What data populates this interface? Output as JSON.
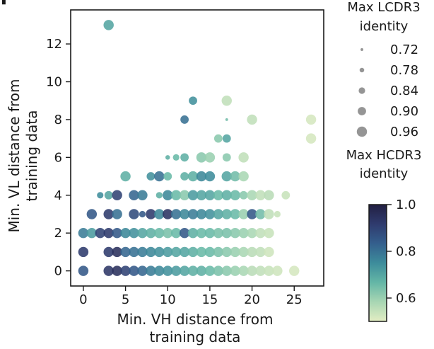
{
  "chart_data": {
    "type": "scatter",
    "panel_letter": "f",
    "xlabel": [
      "Min. VH distance from",
      "training data"
    ],
    "ylabel": [
      "Min. VL distance from",
      "training data"
    ],
    "xlim": [
      -1.5,
      28.5
    ],
    "ylim": [
      -0.8,
      13.8
    ],
    "xticks": [
      0,
      5,
      10,
      15,
      20,
      25
    ],
    "yticks": [
      0,
      2,
      4,
      6,
      8,
      10,
      12
    ],
    "grid": false,
    "size_legend": {
      "title": [
        "Max LCDR3",
        "identity"
      ],
      "entries": [
        "0.72",
        "0.78",
        "0.84",
        "0.90",
        "0.96"
      ],
      "values": [
        0.72,
        0.78,
        0.84,
        0.9,
        0.96
      ]
    },
    "color_legend": {
      "title": [
        "Max HCDR3",
        "identity"
      ],
      "ticks": [
        "0.6",
        "0.8",
        "1.0"
      ],
      "tick_values": [
        0.6,
        0.8,
        1.0
      ],
      "range": [
        0.5,
        1.0
      ],
      "colormap": [
        "#e3edc3",
        "#a8d6b3",
        "#64b6a6",
        "#3d8c9b",
        "#345f8d",
        "#2f3b6e",
        "#221f42"
      ]
    },
    "points": [
      {
        "x": 3,
        "y": 13,
        "s": 0.96,
        "c": 0.7
      },
      {
        "x": 13,
        "y": 9,
        "s": 0.9,
        "c": 0.74
      },
      {
        "x": 17,
        "y": 9,
        "s": 0.96,
        "c": 0.55
      },
      {
        "x": 12,
        "y": 8,
        "s": 0.9,
        "c": 0.8
      },
      {
        "x": 17,
        "y": 8,
        "s": 0.72,
        "c": 0.65
      },
      {
        "x": 20,
        "y": 8,
        "s": 0.96,
        "c": 0.55
      },
      {
        "x": 27,
        "y": 8,
        "s": 0.96,
        "c": 0.52
      },
      {
        "x": 16,
        "y": 7,
        "s": 0.9,
        "c": 0.62
      },
      {
        "x": 17,
        "y": 7,
        "s": 0.9,
        "c": 0.7
      },
      {
        "x": 27,
        "y": 7,
        "s": 0.96,
        "c": 0.52
      },
      {
        "x": 10,
        "y": 6,
        "s": 0.78,
        "c": 0.68
      },
      {
        "x": 11,
        "y": 6,
        "s": 0.84,
        "c": 0.66
      },
      {
        "x": 12,
        "y": 6,
        "s": 0.9,
        "c": 0.68
      },
      {
        "x": 14,
        "y": 6,
        "s": 0.96,
        "c": 0.62
      },
      {
        "x": 15,
        "y": 6,
        "s": 0.96,
        "c": 0.6
      },
      {
        "x": 17,
        "y": 6,
        "s": 0.9,
        "c": 0.62
      },
      {
        "x": 19,
        "y": 6,
        "s": 0.96,
        "c": 0.55
      },
      {
        "x": 5,
        "y": 5,
        "s": 0.96,
        "c": 0.68
      },
      {
        "x": 8,
        "y": 5,
        "s": 0.9,
        "c": 0.74
      },
      {
        "x": 9,
        "y": 5,
        "s": 0.96,
        "c": 0.8
      },
      {
        "x": 10,
        "y": 5,
        "s": 0.9,
        "c": 0.66
      },
      {
        "x": 12,
        "y": 5,
        "s": 0.9,
        "c": 0.68
      },
      {
        "x": 13,
        "y": 5,
        "s": 0.96,
        "c": 0.68
      },
      {
        "x": 14,
        "y": 5,
        "s": 0.96,
        "c": 0.76
      },
      {
        "x": 15,
        "y": 5,
        "s": 0.96,
        "c": 0.75
      },
      {
        "x": 17,
        "y": 5,
        "s": 0.96,
        "c": 0.7
      },
      {
        "x": 18,
        "y": 5,
        "s": 0.96,
        "c": 0.65
      },
      {
        "x": 19,
        "y": 5,
        "s": 0.96,
        "c": 0.58
      },
      {
        "x": 2,
        "y": 4,
        "s": 0.84,
        "c": 0.75
      },
      {
        "x": 3,
        "y": 4,
        "s": 0.9,
        "c": 0.7
      },
      {
        "x": 4,
        "y": 4,
        "s": 0.96,
        "c": 0.9
      },
      {
        "x": 6,
        "y": 4,
        "s": 0.96,
        "c": 0.82
      },
      {
        "x": 7,
        "y": 4,
        "s": 0.96,
        "c": 0.78
      },
      {
        "x": 9,
        "y": 4,
        "s": 0.84,
        "c": 0.68
      },
      {
        "x": 10,
        "y": 4,
        "s": 0.96,
        "c": 0.76
      },
      {
        "x": 11,
        "y": 4,
        "s": 0.96,
        "c": 0.66
      },
      {
        "x": 12,
        "y": 4,
        "s": 0.96,
        "c": 0.62
      },
      {
        "x": 13,
        "y": 4,
        "s": 0.96,
        "c": 0.72
      },
      {
        "x": 14,
        "y": 4,
        "s": 0.96,
        "c": 0.7
      },
      {
        "x": 15,
        "y": 4,
        "s": 0.96,
        "c": 0.7
      },
      {
        "x": 16,
        "y": 4,
        "s": 0.96,
        "c": 0.66
      },
      {
        "x": 17,
        "y": 4,
        "s": 0.96,
        "c": 0.68
      },
      {
        "x": 18,
        "y": 4,
        "s": 0.96,
        "c": 0.66
      },
      {
        "x": 19,
        "y": 4,
        "s": 0.9,
        "c": 0.62
      },
      {
        "x": 20,
        "y": 4,
        "s": 0.96,
        "c": 0.58
      },
      {
        "x": 21,
        "y": 4,
        "s": 0.96,
        "c": 0.55
      },
      {
        "x": 22,
        "y": 4,
        "s": 0.96,
        "c": 0.56
      },
      {
        "x": 24,
        "y": 4,
        "s": 0.9,
        "c": 0.54
      },
      {
        "x": 1,
        "y": 3,
        "s": 0.96,
        "c": 0.85
      },
      {
        "x": 3,
        "y": 3,
        "s": 0.96,
        "c": 0.92
      },
      {
        "x": 4,
        "y": 3,
        "s": 0.96,
        "c": 0.8
      },
      {
        "x": 6,
        "y": 3,
        "s": 0.96,
        "c": 0.88
      },
      {
        "x": 7,
        "y": 3,
        "s": 0.84,
        "c": 0.85
      },
      {
        "x": 8,
        "y": 3,
        "s": 0.96,
        "c": 0.92
      },
      {
        "x": 9,
        "y": 3,
        "s": 0.96,
        "c": 0.76
      },
      {
        "x": 10,
        "y": 3,
        "s": 0.96,
        "c": 0.94
      },
      {
        "x": 11,
        "y": 3,
        "s": 0.96,
        "c": 0.8
      },
      {
        "x": 12,
        "y": 3,
        "s": 0.96,
        "c": 0.76
      },
      {
        "x": 13,
        "y": 3,
        "s": 0.96,
        "c": 0.78
      },
      {
        "x": 14,
        "y": 3,
        "s": 0.96,
        "c": 0.76
      },
      {
        "x": 15,
        "y": 3,
        "s": 0.96,
        "c": 0.74
      },
      {
        "x": 16,
        "y": 3,
        "s": 0.96,
        "c": 0.7
      },
      {
        "x": 17,
        "y": 3,
        "s": 0.96,
        "c": 0.68
      },
      {
        "x": 18,
        "y": 3,
        "s": 0.96,
        "c": 0.66
      },
      {
        "x": 19,
        "y": 3,
        "s": 0.96,
        "c": 0.6
      },
      {
        "x": 20,
        "y": 3,
        "s": 0.96,
        "c": 0.85
      },
      {
        "x": 21,
        "y": 3,
        "s": 0.96,
        "c": 0.65
      },
      {
        "x": 22,
        "y": 3,
        "s": 0.96,
        "c": 0.55
      },
      {
        "x": 23,
        "y": 3,
        "s": 0.84,
        "c": 0.54
      },
      {
        "x": 0,
        "y": 2,
        "s": 0.96,
        "c": 0.78
      },
      {
        "x": 1,
        "y": 2,
        "s": 0.96,
        "c": 0.72
      },
      {
        "x": 2,
        "y": 2,
        "s": 0.96,
        "c": 0.9
      },
      {
        "x": 3,
        "y": 2,
        "s": 0.96,
        "c": 0.92
      },
      {
        "x": 4,
        "y": 2,
        "s": 0.96,
        "c": 0.85
      },
      {
        "x": 5,
        "y": 2,
        "s": 0.96,
        "c": 0.76
      },
      {
        "x": 6,
        "y": 2,
        "s": 0.96,
        "c": 0.74
      },
      {
        "x": 7,
        "y": 2,
        "s": 0.96,
        "c": 0.7
      },
      {
        "x": 8,
        "y": 2,
        "s": 0.96,
        "c": 0.68
      },
      {
        "x": 9,
        "y": 2,
        "s": 0.96,
        "c": 0.66
      },
      {
        "x": 10,
        "y": 2,
        "s": 0.96,
        "c": 0.64
      },
      {
        "x": 11,
        "y": 2,
        "s": 0.96,
        "c": 0.66
      },
      {
        "x": 12,
        "y": 2,
        "s": 0.96,
        "c": 0.85
      },
      {
        "x": 13,
        "y": 2,
        "s": 0.96,
        "c": 0.68
      },
      {
        "x": 14,
        "y": 2,
        "s": 0.96,
        "c": 0.66
      },
      {
        "x": 15,
        "y": 2,
        "s": 0.96,
        "c": 0.66
      },
      {
        "x": 16,
        "y": 2,
        "s": 0.96,
        "c": 0.64
      },
      {
        "x": 17,
        "y": 2,
        "s": 0.96,
        "c": 0.64
      },
      {
        "x": 18,
        "y": 2,
        "s": 0.96,
        "c": 0.62
      },
      {
        "x": 19,
        "y": 2,
        "s": 0.96,
        "c": 0.6
      },
      {
        "x": 20,
        "y": 2,
        "s": 0.96,
        "c": 0.58
      },
      {
        "x": 21,
        "y": 2,
        "s": 0.96,
        "c": 0.55
      },
      {
        "x": 22,
        "y": 2,
        "s": 0.96,
        "c": 0.54
      },
      {
        "x": 0,
        "y": 1,
        "s": 0.96,
        "c": 0.92
      },
      {
        "x": 3,
        "y": 1,
        "s": 0.96,
        "c": 0.92
      },
      {
        "x": 4,
        "y": 1,
        "s": 0.96,
        "c": 0.95
      },
      {
        "x": 5,
        "y": 1,
        "s": 0.96,
        "c": 0.82
      },
      {
        "x": 6,
        "y": 1,
        "s": 0.96,
        "c": 0.8
      },
      {
        "x": 7,
        "y": 1,
        "s": 0.96,
        "c": 0.78
      },
      {
        "x": 8,
        "y": 1,
        "s": 0.96,
        "c": 0.76
      },
      {
        "x": 9,
        "y": 1,
        "s": 0.96,
        "c": 0.74
      },
      {
        "x": 10,
        "y": 1,
        "s": 0.96,
        "c": 0.72
      },
      {
        "x": 11,
        "y": 1,
        "s": 0.96,
        "c": 0.7
      },
      {
        "x": 12,
        "y": 1,
        "s": 0.96,
        "c": 0.7
      },
      {
        "x": 13,
        "y": 1,
        "s": 0.96,
        "c": 0.68
      },
      {
        "x": 14,
        "y": 1,
        "s": 0.96,
        "c": 0.66
      },
      {
        "x": 15,
        "y": 1,
        "s": 0.96,
        "c": 0.66
      },
      {
        "x": 16,
        "y": 1,
        "s": 0.96,
        "c": 0.64
      },
      {
        "x": 17,
        "y": 1,
        "s": 0.96,
        "c": 0.62
      },
      {
        "x": 18,
        "y": 1,
        "s": 0.96,
        "c": 0.6
      },
      {
        "x": 19,
        "y": 1,
        "s": 0.96,
        "c": 0.58
      },
      {
        "x": 20,
        "y": 1,
        "s": 0.96,
        "c": 0.56
      },
      {
        "x": 21,
        "y": 1,
        "s": 0.96,
        "c": 0.55
      },
      {
        "x": 22,
        "y": 1,
        "s": 0.96,
        "c": 0.53
      },
      {
        "x": 0,
        "y": 0,
        "s": 0.96,
        "c": 0.85
      },
      {
        "x": 3,
        "y": 0,
        "s": 0.96,
        "c": 0.93
      },
      {
        "x": 4,
        "y": 0,
        "s": 0.96,
        "c": 0.95
      },
      {
        "x": 5,
        "y": 0,
        "s": 0.96,
        "c": 0.9
      },
      {
        "x": 6,
        "y": 0,
        "s": 0.96,
        "c": 0.85
      },
      {
        "x": 7,
        "y": 0,
        "s": 0.96,
        "c": 0.82
      },
      {
        "x": 8,
        "y": 0,
        "s": 0.96,
        "c": 0.78
      },
      {
        "x": 9,
        "y": 0,
        "s": 0.96,
        "c": 0.76
      },
      {
        "x": 10,
        "y": 0,
        "s": 0.96,
        "c": 0.74
      },
      {
        "x": 11,
        "y": 0,
        "s": 0.96,
        "c": 0.72
      },
      {
        "x": 12,
        "y": 0,
        "s": 0.96,
        "c": 0.7
      },
      {
        "x": 13,
        "y": 0,
        "s": 0.96,
        "c": 0.68
      },
      {
        "x": 14,
        "y": 0,
        "s": 0.96,
        "c": 0.68
      },
      {
        "x": 15,
        "y": 0,
        "s": 0.96,
        "c": 0.66
      },
      {
        "x": 16,
        "y": 0,
        "s": 0.96,
        "c": 0.64
      },
      {
        "x": 17,
        "y": 0,
        "s": 0.96,
        "c": 0.62
      },
      {
        "x": 18,
        "y": 0,
        "s": 0.96,
        "c": 0.6
      },
      {
        "x": 19,
        "y": 0,
        "s": 0.96,
        "c": 0.58
      },
      {
        "x": 20,
        "y": 0,
        "s": 0.96,
        "c": 0.56
      },
      {
        "x": 21,
        "y": 0,
        "s": 0.96,
        "c": 0.55
      },
      {
        "x": 22,
        "y": 0,
        "s": 0.96,
        "c": 0.54
      },
      {
        "x": 23,
        "y": 0,
        "s": 0.96,
        "c": 0.53
      },
      {
        "x": 25,
        "y": 0,
        "s": 0.96,
        "c": 0.52
      }
    ]
  }
}
